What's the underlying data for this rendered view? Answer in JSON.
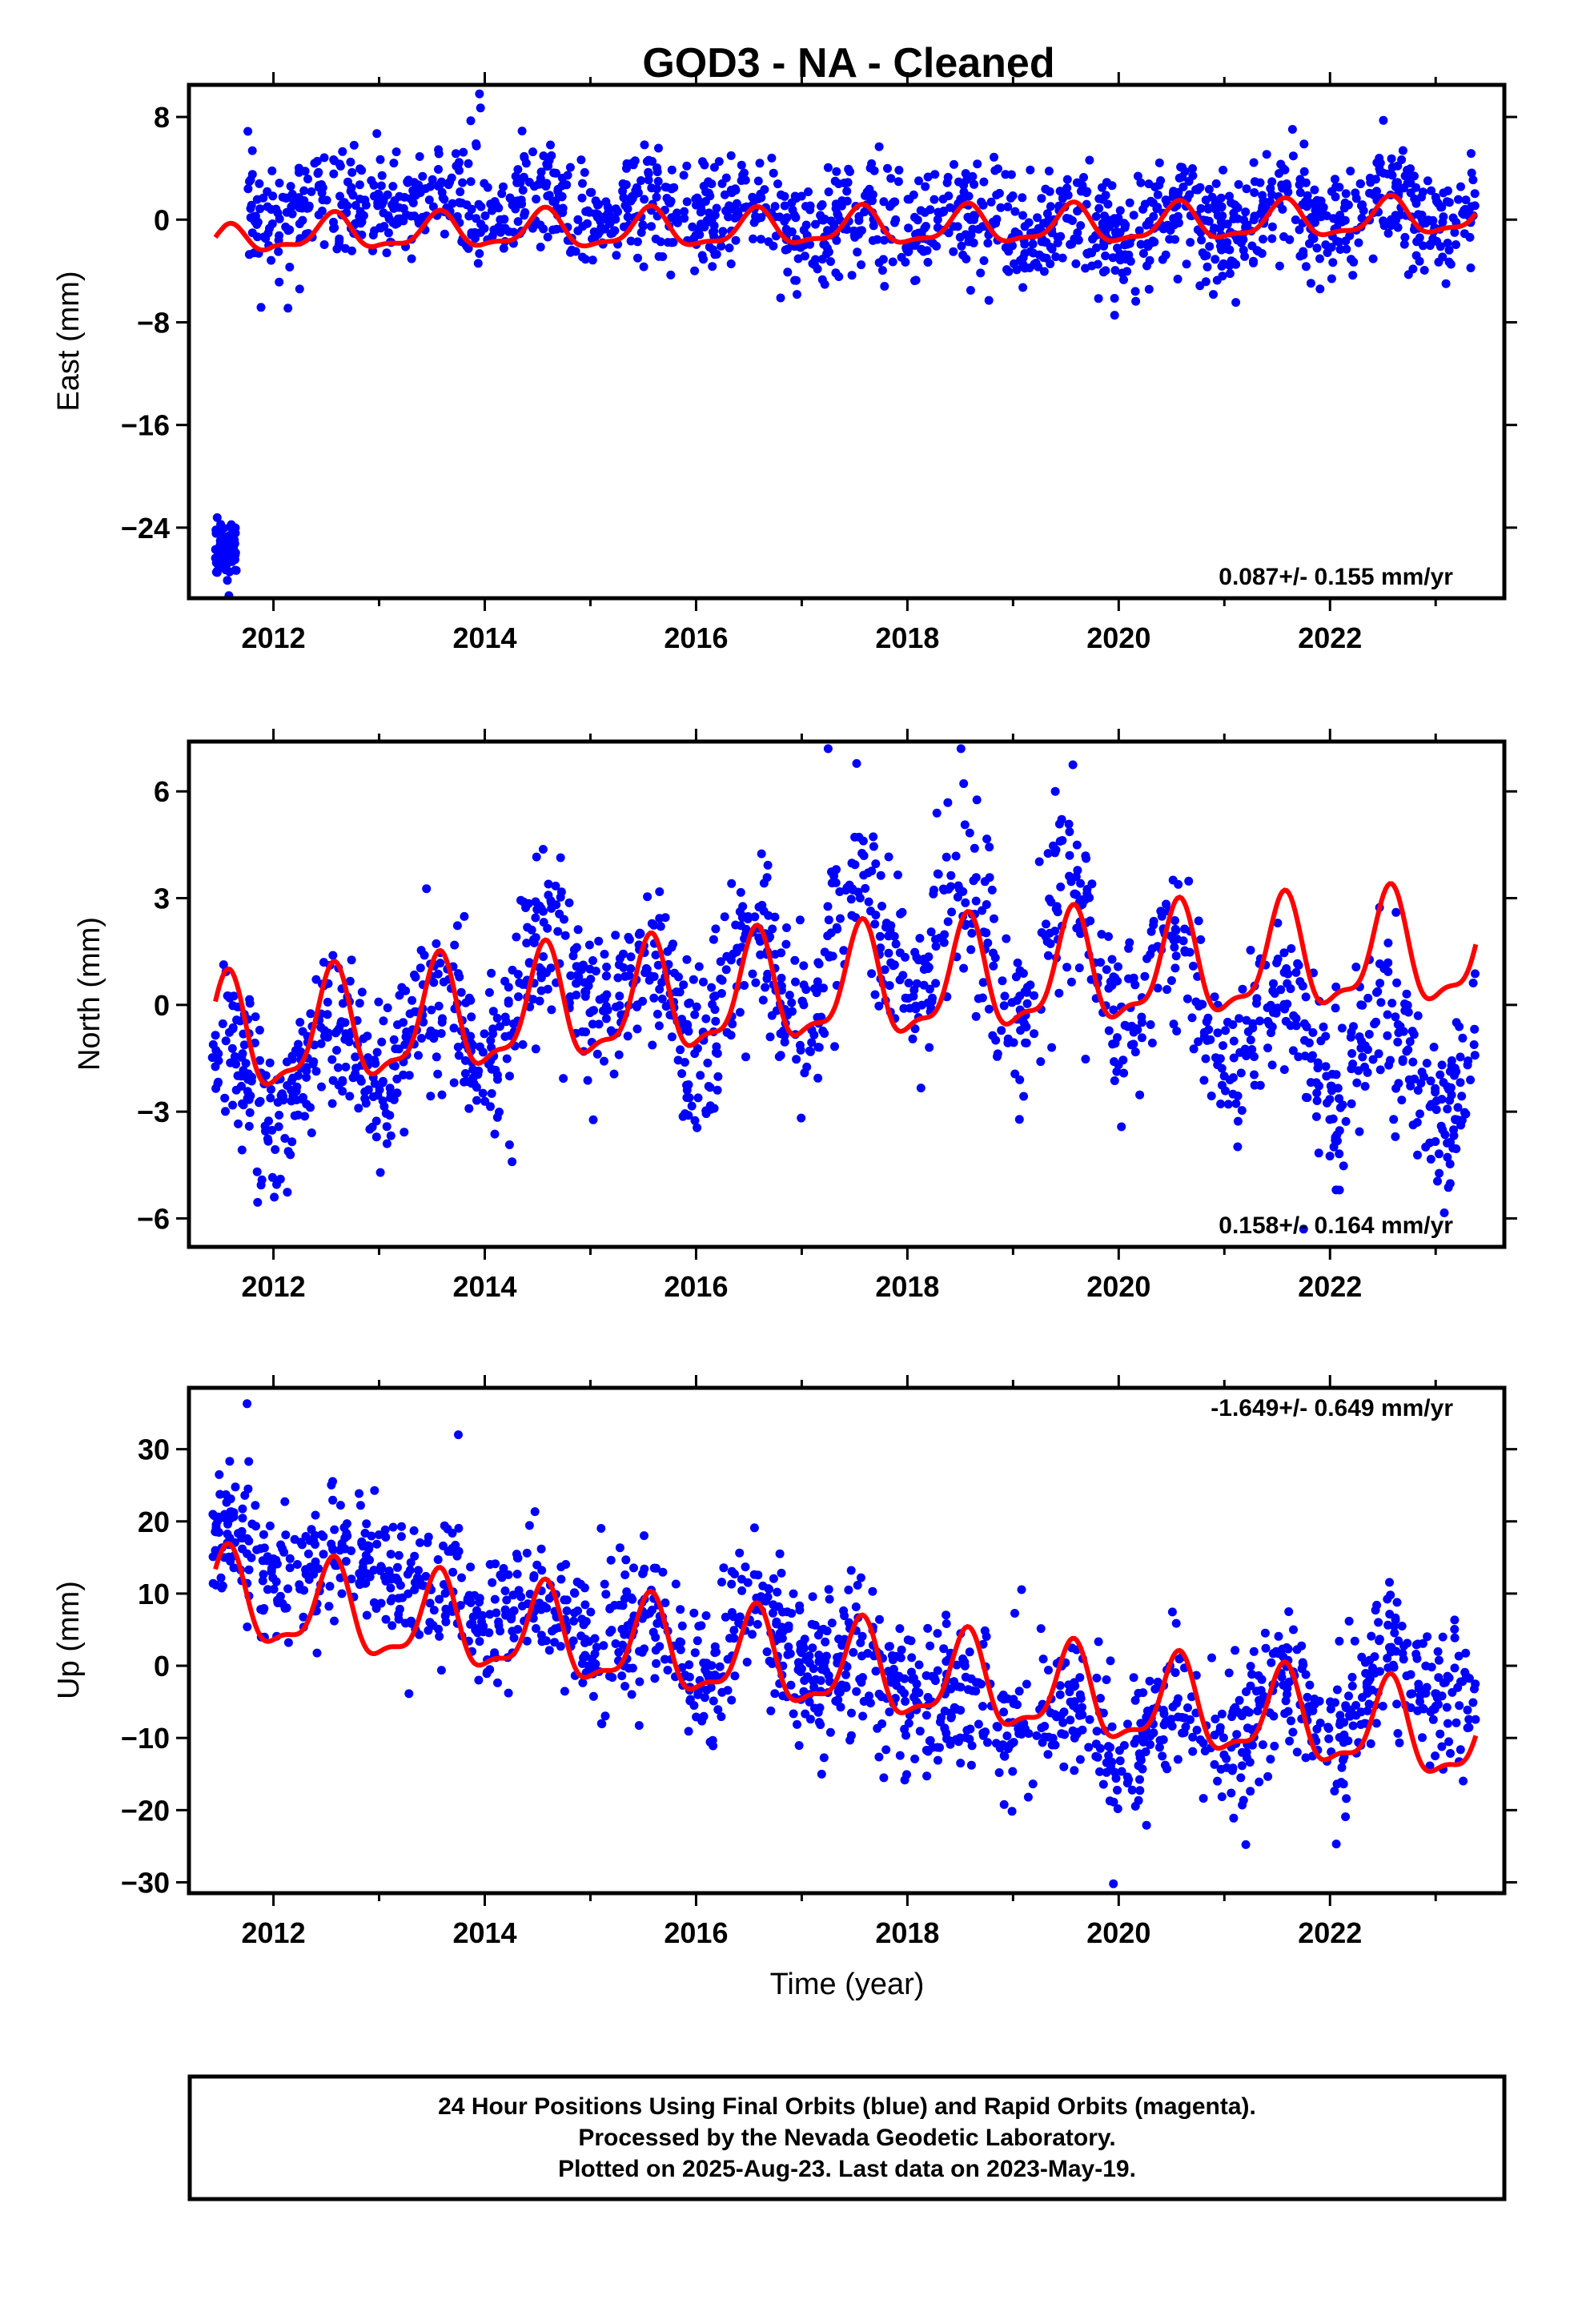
{
  "title": "GOD3  - NA - Cleaned",
  "xlabel": "Time (year)",
  "footer": {
    "line1": "24 Hour Positions Using Final Orbits (blue) and Rapid Orbits (magenta).",
    "line2": "Processed by the Nevada Geodetic Laboratory.",
    "line3": "Plotted on 2025-Aug-23. Last data on 2023-May-19."
  },
  "colors": {
    "data": "#0000ff",
    "model": "#ff0000",
    "frame": "#000000"
  },
  "chart_data": [
    {
      "type": "scatter",
      "ylabel": "East (mm)",
      "rate_label": "0.087+/- 0.155 mm/yr",
      "xlim": [
        2011.2,
        2023.65
      ],
      "ylim": [
        -29.5,
        10.5
      ],
      "xticks": [
        2012,
        2014,
        2016,
        2018,
        2020,
        2022
      ],
      "xtick_labels": [
        "2012",
        "2014",
        "2016",
        "2018",
        "2020",
        "2022"
      ],
      "yticks": [
        8,
        0,
        -8,
        -16,
        -24
      ],
      "ytick_labels": [
        "8",
        "0",
        "−8",
        "−16",
        "−24"
      ],
      "series": [
        {
          "values_note_x": "decimal year",
          "x": [
            2011.5,
            2012.0,
            2012.5,
            2013.0,
            2013.5,
            2014.0,
            2014.5,
            2015.0,
            2015.5,
            2016.0,
            2016.5,
            2017.0,
            2017.5,
            2018.0,
            2018.5,
            2019.0,
            2019.5,
            2020.0,
            2020.5,
            2021.0,
            2021.5,
            2022.0,
            2022.5,
            2023.0,
            2023.38
          ],
          "trend_y": [
            -2.4,
            -1.0,
            -1.3,
            -0.9,
            -1.2,
            -0.8,
            -0.9,
            -0.9,
            -0.8,
            -0.8,
            -0.9,
            -0.6,
            -0.7,
            -0.6,
            -0.6,
            -0.5,
            -0.5,
            -0.5,
            -0.4,
            -0.2,
            -0.2,
            0.0,
            0.0,
            0.2,
            0.3
          ],
          "scatter_y": [
            1.0,
            0.8,
            0.9,
            1.0,
            1.3,
            1.4,
            1.0,
            0.3,
            0.6,
            0.4,
            0.2,
            -0.8,
            0.1,
            0.0,
            -0.3,
            -0.5,
            -0.4,
            -0.8,
            -0.4,
            -0.3,
            0.4,
            0.7,
            0.9,
            0.6,
            0.5
          ],
          "scatter_spread": 2.1,
          "amplitude": 1.4,
          "early_segment": {
            "x": [
              2011.45,
              2011.65
            ],
            "y": -26.0
          },
          "outliers": [
            {
              "x": 2013.95,
              "y": 9.8
            },
            {
              "x": 2013.96,
              "y": 8.7
            },
            {
              "x": 2016.8,
              "y": -6.1
            }
          ]
        }
      ]
    },
    {
      "type": "scatter",
      "ylabel": "North (mm)",
      "rate_label": "0.158+/- 0.164 mm/yr",
      "xlim": [
        2011.2,
        2023.65
      ],
      "ylim": [
        -6.8,
        7.4
      ],
      "xticks": [
        2012,
        2014,
        2016,
        2018,
        2020,
        2022
      ],
      "xtick_labels": [
        "2012",
        "2014",
        "2016",
        "2018",
        "2020",
        "2022"
      ],
      "yticks": [
        6,
        3,
        0,
        -3,
        -6
      ],
      "ytick_labels": [
        "6",
        "3",
        "0",
        "−3",
        "−6"
      ],
      "series": [
        {
          "x": [
            2011.5,
            2012.0,
            2012.5,
            2013.0,
            2013.5,
            2014.0,
            2014.5,
            2015.0,
            2015.5,
            2016.0,
            2016.5,
            2017.0,
            2017.5,
            2018.0,
            2018.5,
            2019.0,
            2019.5,
            2020.0,
            2020.5,
            2021.0,
            2021.5,
            2022.0,
            2022.5,
            2023.0,
            2023.38
          ],
          "trend_y": [
            -1.0,
            -1.0,
            -0.8,
            -0.7,
            -0.5,
            -0.4,
            -0.2,
            -0.1,
            0.0,
            0.1,
            0.2,
            0.4,
            0.4,
            0.5,
            0.6,
            0.7,
            0.8,
            0.9,
            1.0,
            1.1,
            1.2,
            1.3,
            1.4,
            1.4,
            1.5
          ],
          "scatter_y": [
            -1.5,
            -2.8,
            -1.2,
            -1.6,
            -0.2,
            -1.2,
            1.0,
            0.5,
            0.6,
            -0.5,
            1.5,
            0.0,
            3.0,
            0.9,
            2.5,
            0.2,
            2.8,
            0.2,
            1.2,
            -1.0,
            -0.5,
            -1.8,
            -1.0,
            -2.5,
            -2.0
          ],
          "scatter_spread": 1.2,
          "amplitude": 1.5,
          "early_segment": null,
          "outliers": [
            {
              "x": 2017.25,
              "y": 7.2
            },
            {
              "x": 2019.4,
              "y": 6.0
            },
            {
              "x": 2021.75,
              "y": -6.3
            }
          ]
        }
      ]
    },
    {
      "type": "scatter",
      "ylabel": "Up (mm)",
      "rate_label": "-1.649+/- 0.649 mm/yr",
      "xlim": [
        2011.2,
        2023.65
      ],
      "ylim": [
        -31.5,
        38.5
      ],
      "xticks": [
        2012,
        2014,
        2016,
        2018,
        2020,
        2022
      ],
      "xtick_labels": [
        "2012",
        "2014",
        "2016",
        "2018",
        "2020",
        "2022"
      ],
      "yticks": [
        30,
        20,
        10,
        0,
        -10,
        -20,
        -30
      ],
      "ytick_labels": [
        "30",
        "20",
        "10",
        "0",
        "−10",
        "−20",
        "−30"
      ],
      "series": [
        {
          "x": [
            2011.5,
            2012.0,
            2012.5,
            2013.0,
            2013.5,
            2014.0,
            2014.5,
            2015.0,
            2015.5,
            2016.0,
            2016.5,
            2017.0,
            2017.5,
            2018.0,
            2018.5,
            2019.0,
            2019.5,
            2020.0,
            2020.5,
            2021.0,
            2021.5,
            2022.0,
            2022.5,
            2023.0,
            2023.38
          ],
          "trend_y": [
            9.0,
            8.2,
            7.3,
            6.5,
            5.7,
            4.9,
            4.1,
            3.2,
            2.4,
            1.6,
            0.8,
            0.0,
            -0.9,
            -1.7,
            -2.5,
            -3.3,
            -4.1,
            -5.0,
            -5.8,
            -6.6,
            -7.4,
            -8.2,
            -9.0,
            -9.8,
            -10.5
          ],
          "scatter_y": [
            15.0,
            16.0,
            11.0,
            18.0,
            8.0,
            10.0,
            6.0,
            7.0,
            2.0,
            0.0,
            3.0,
            4.0,
            -3.0,
            -2.0,
            -8.0,
            -4.0,
            -9.0,
            -10.0,
            -9.0,
            -9.0,
            -5.0,
            -6.0,
            -3.0,
            0.0,
            -5.0
          ],
          "scatter_spread": 5.0,
          "amplitude": 6.0,
          "early_segment": null,
          "outliers": [
            {
              "x": 2011.75,
              "y": 36.3
            },
            {
              "x": 2013.75,
              "y": 32.0
            },
            {
              "x": 2019.95,
              "y": -30.2
            }
          ]
        }
      ]
    }
  ]
}
